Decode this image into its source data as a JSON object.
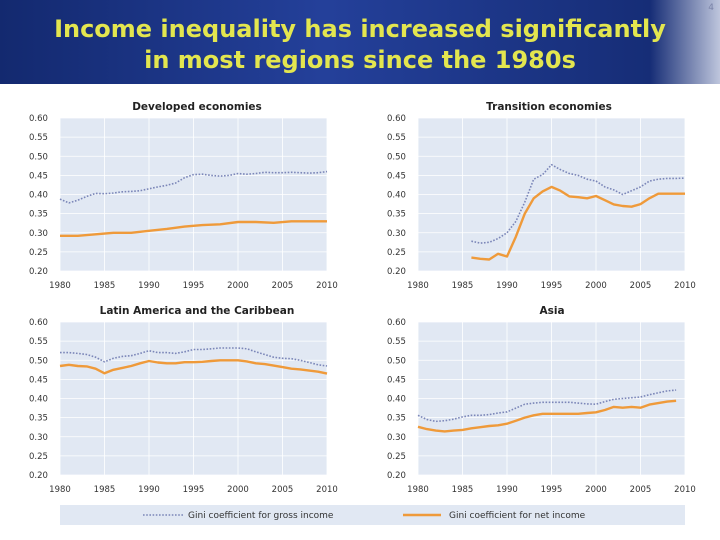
{
  "page_number": "4",
  "title_line1": "Income inequality has increased significantly",
  "title_line2": "in most regions since the 1980s",
  "colors": {
    "gross": "#7b86b8",
    "net": "#ef9a3a",
    "title": "#e3e64f",
    "header_bg": "#1b3482",
    "plot_bg": "#e1e8f3"
  },
  "legend": {
    "gross_label": "Gini coefficient for gross income",
    "net_label": "Gini coefficient for net income"
  },
  "chart_data": [
    {
      "type": "line",
      "title": "Developed economies",
      "xlim": [
        1980,
        2010
      ],
      "ylim": [
        0.2,
        0.6
      ],
      "x_ticks": [
        "1980",
        "1985",
        "1990",
        "1995",
        "2000",
        "2005",
        "2010"
      ],
      "y_ticks": [
        "0.60",
        "0.55",
        "0.50",
        "0.45",
        "0.40",
        "0.35",
        "0.30",
        "0.25",
        "0.20"
      ],
      "series": [
        {
          "name": "Gini coefficient for gross income",
          "style": "dotted",
          "x": [
            1980,
            1981,
            1982,
            1983,
            1984,
            1985,
            1986,
            1987,
            1988,
            1989,
            1990,
            1991,
            1992,
            1993,
            1994,
            1995,
            1996,
            1997,
            1998,
            1999,
            2000,
            2001,
            2002,
            2003,
            2004,
            2005,
            2006,
            2007,
            2008,
            2009,
            2010
          ],
          "values": [
            0.388,
            0.378,
            0.385,
            0.395,
            0.403,
            0.402,
            0.404,
            0.407,
            0.408,
            0.41,
            0.415,
            0.42,
            0.424,
            0.43,
            0.444,
            0.452,
            0.453,
            0.45,
            0.448,
            0.45,
            0.455,
            0.453,
            0.455,
            0.458,
            0.457,
            0.457,
            0.458,
            0.457,
            0.456,
            0.457,
            0.46
          ]
        },
        {
          "name": "Gini coefficient for net income",
          "style": "solid",
          "x": [
            1980,
            1982,
            1984,
            1986,
            1988,
            1990,
            1992,
            1994,
            1996,
            1998,
            2000,
            2002,
            2004,
            2006,
            2008,
            2010
          ],
          "values": [
            0.292,
            0.292,
            0.296,
            0.3,
            0.3,
            0.305,
            0.31,
            0.316,
            0.32,
            0.322,
            0.328,
            0.328,
            0.326,
            0.33,
            0.33,
            0.33
          ]
        }
      ]
    },
    {
      "type": "line",
      "title": "Transition  economies",
      "xlim": [
        1980,
        2010
      ],
      "ylim": [
        0.2,
        0.6
      ],
      "x_ticks": [
        "1980",
        "1985",
        "1990",
        "1995",
        "2000",
        "2005",
        "2010"
      ],
      "y_ticks": [
        "0.60",
        "0.55",
        "0.50",
        "0.45",
        "0.40",
        "0.35",
        "0.30",
        "0.25",
        "0.20"
      ],
      "series": [
        {
          "name": "Gini coefficient for gross income",
          "style": "dotted",
          "x": [
            1986,
            1987,
            1988,
            1989,
            1990,
            1991,
            1992,
            1993,
            1994,
            1995,
            1996,
            1997,
            1998,
            1999,
            2000,
            2001,
            2002,
            2003,
            2004,
            2005,
            2006,
            2007,
            2008,
            2009,
            2010
          ],
          "values": [
            0.278,
            0.273,
            0.275,
            0.285,
            0.3,
            0.33,
            0.38,
            0.44,
            0.452,
            0.478,
            0.465,
            0.455,
            0.45,
            0.44,
            0.435,
            0.42,
            0.412,
            0.4,
            0.41,
            0.42,
            0.435,
            0.44,
            0.442,
            0.442,
            0.443
          ]
        },
        {
          "name": "Gini coefficient for net income",
          "style": "solid",
          "x": [
            1986,
            1987,
            1988,
            1989,
            1990,
            1991,
            1992,
            1993,
            1994,
            1995,
            1996,
            1997,
            1998,
            1999,
            2000,
            2001,
            2002,
            2003,
            2004,
            2005,
            2006,
            2007,
            2008,
            2009,
            2010
          ],
          "values": [
            0.235,
            0.232,
            0.23,
            0.245,
            0.238,
            0.29,
            0.35,
            0.39,
            0.408,
            0.42,
            0.41,
            0.395,
            0.393,
            0.39,
            0.396,
            0.385,
            0.374,
            0.37,
            0.368,
            0.375,
            0.39,
            0.402,
            0.402,
            0.402,
            0.402
          ]
        }
      ]
    },
    {
      "type": "line",
      "title": "Latin America and the Caribbean",
      "xlim": [
        1980,
        2010
      ],
      "ylim": [
        0.2,
        0.6
      ],
      "x_ticks": [
        "1980",
        "1985",
        "1990",
        "1995",
        "2000",
        "2005",
        "2010"
      ],
      "y_ticks": [
        "0.60",
        "0.55",
        "0.50",
        "0.45",
        "0.40",
        "0.35",
        "0.30",
        "0.25",
        "0.20"
      ],
      "series": [
        {
          "name": "Gini coefficient for gross income",
          "style": "dotted",
          "x": [
            1980,
            1981,
            1982,
            1983,
            1984,
            1985,
            1986,
            1987,
            1988,
            1989,
            1990,
            1991,
            1992,
            1993,
            1994,
            1995,
            1996,
            1997,
            1998,
            1999,
            2000,
            2001,
            2002,
            2003,
            2004,
            2005,
            2006,
            2007,
            2008,
            2009,
            2010
          ],
          "values": [
            0.52,
            0.52,
            0.518,
            0.515,
            0.508,
            0.496,
            0.505,
            0.51,
            0.512,
            0.518,
            0.525,
            0.52,
            0.52,
            0.518,
            0.522,
            0.528,
            0.528,
            0.53,
            0.532,
            0.532,
            0.532,
            0.53,
            0.522,
            0.515,
            0.508,
            0.505,
            0.504,
            0.5,
            0.494,
            0.488,
            0.485
          ]
        },
        {
          "name": "Gini coefficient for net income",
          "style": "solid",
          "x": [
            1980,
            1981,
            1982,
            1983,
            1984,
            1985,
            1986,
            1987,
            1988,
            1989,
            1990,
            1991,
            1992,
            1993,
            1994,
            1995,
            1996,
            1997,
            1998,
            1999,
            2000,
            2001,
            2002,
            2003,
            2004,
            2005,
            2006,
            2007,
            2008,
            2009,
            2010
          ],
          "values": [
            0.485,
            0.488,
            0.485,
            0.484,
            0.478,
            0.466,
            0.475,
            0.48,
            0.485,
            0.492,
            0.498,
            0.494,
            0.492,
            0.492,
            0.495,
            0.495,
            0.496,
            0.498,
            0.5,
            0.5,
            0.5,
            0.497,
            0.492,
            0.49,
            0.486,
            0.482,
            0.478,
            0.476,
            0.473,
            0.47,
            0.465
          ]
        }
      ]
    },
    {
      "type": "line",
      "title": "Asia",
      "xlim": [
        1980,
        2010
      ],
      "ylim": [
        0.2,
        0.6
      ],
      "x_ticks": [
        "1980",
        "1985",
        "1990",
        "1995",
        "2000",
        "2005",
        "2010"
      ],
      "y_ticks": [
        "0.60",
        "0.55",
        "0.50",
        "0.45",
        "0.40",
        "0.35",
        "0.30",
        "0.25",
        "0.20"
      ],
      "series": [
        {
          "name": "Gini coefficient for gross income",
          "style": "dotted",
          "x": [
            1980,
            1981,
            1982,
            1983,
            1984,
            1985,
            1986,
            1987,
            1988,
            1989,
            1990,
            1991,
            1992,
            1993,
            1994,
            1995,
            1996,
            1997,
            1998,
            1999,
            2000,
            2001,
            2002,
            2003,
            2004,
            2005,
            2006,
            2007,
            2008,
            2009
          ],
          "values": [
            0.356,
            0.345,
            0.34,
            0.342,
            0.346,
            0.352,
            0.356,
            0.356,
            0.358,
            0.362,
            0.365,
            0.375,
            0.385,
            0.388,
            0.39,
            0.39,
            0.39,
            0.39,
            0.388,
            0.386,
            0.385,
            0.392,
            0.398,
            0.4,
            0.402,
            0.404,
            0.41,
            0.415,
            0.42,
            0.422
          ]
        },
        {
          "name": "Gini coefficient for net income",
          "style": "solid",
          "x": [
            1980,
            1981,
            1982,
            1983,
            1984,
            1985,
            1986,
            1987,
            1988,
            1989,
            1990,
            1991,
            1992,
            1993,
            1994,
            1995,
            1996,
            1997,
            1998,
            1999,
            2000,
            2001,
            2002,
            2003,
            2004,
            2005,
            2006,
            2007,
            2008,
            2009
          ],
          "values": [
            0.326,
            0.32,
            0.316,
            0.314,
            0.316,
            0.318,
            0.322,
            0.325,
            0.328,
            0.33,
            0.334,
            0.342,
            0.35,
            0.356,
            0.36,
            0.36,
            0.36,
            0.36,
            0.36,
            0.362,
            0.364,
            0.37,
            0.378,
            0.376,
            0.378,
            0.376,
            0.384,
            0.388,
            0.392,
            0.394
          ]
        }
      ]
    }
  ]
}
